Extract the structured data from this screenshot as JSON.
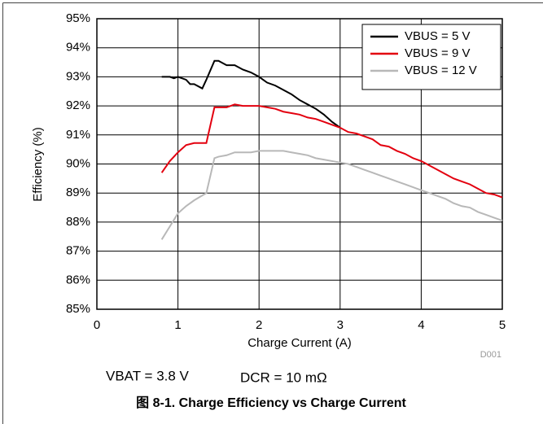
{
  "chart_data": {
    "type": "line",
    "title": "图 8-1. Charge Efficiency vs Charge Current",
    "xlabel": "Charge Current (A)",
    "ylabel": "Efficiency (%)",
    "annotations": [
      "D001",
      "VBAT = 3.8 V",
      "DCR = 10 mΩ"
    ],
    "xlim": [
      0,
      5
    ],
    "xticks": [
      0,
      1,
      2,
      3,
      4,
      5
    ],
    "ylim": [
      85,
      95
    ],
    "yticks": [
      {
        "value": 85,
        "label": "85%"
      },
      {
        "value": 86,
        "label": "86%"
      },
      {
        "value": 87,
        "label": "87%"
      },
      {
        "value": 88,
        "label": "88%"
      },
      {
        "value": 89,
        "label": "89%"
      },
      {
        "value": 90,
        "label": "90%"
      },
      {
        "value": 91,
        "label": "91%"
      },
      {
        "value": 92,
        "label": "92%"
      },
      {
        "value": 93,
        "label": "93%"
      },
      {
        "value": 94,
        "label": "94%"
      },
      {
        "value": 95,
        "label": "95%"
      }
    ],
    "grid": true,
    "legend": "upper right",
    "series": [
      {
        "name": "VBUS = 5 V",
        "color": "#000000",
        "x": [
          0.8,
          0.9,
          0.95,
          1.0,
          1.1,
          1.15,
          1.2,
          1.3,
          1.35,
          1.45,
          1.5,
          1.6,
          1.7,
          1.8,
          1.9,
          2.0,
          2.1,
          2.2,
          2.3,
          2.4,
          2.5,
          2.6,
          2.7,
          2.8,
          2.9,
          3.0
        ],
        "values": [
          93.0,
          93.0,
          92.95,
          93.0,
          92.9,
          92.75,
          92.75,
          92.6,
          92.9,
          93.55,
          93.55,
          93.4,
          93.4,
          93.25,
          93.15,
          93.0,
          92.8,
          92.7,
          92.55,
          92.4,
          92.2,
          92.05,
          91.9,
          91.7,
          91.45,
          91.25
        ]
      },
      {
        "name": "VBUS = 9 V",
        "color": "#e3000f",
        "x": [
          0.8,
          0.9,
          1.0,
          1.1,
          1.2,
          1.35,
          1.45,
          1.5,
          1.6,
          1.7,
          1.8,
          2.0,
          2.1,
          2.2,
          2.3,
          2.4,
          2.5,
          2.6,
          2.7,
          2.8,
          2.9,
          3.0,
          3.1,
          3.2,
          3.3,
          3.4,
          3.5,
          3.6,
          3.7,
          3.8,
          3.9,
          4.0,
          4.1,
          4.2,
          4.3,
          4.4,
          4.5,
          4.6,
          4.7,
          4.8,
          4.9,
          5.0
        ],
        "values": [
          89.7,
          90.1,
          90.4,
          90.65,
          90.72,
          90.72,
          91.95,
          91.95,
          91.95,
          92.05,
          92.0,
          92.0,
          91.95,
          91.9,
          91.8,
          91.75,
          91.7,
          91.6,
          91.55,
          91.45,
          91.35,
          91.25,
          91.1,
          91.05,
          90.95,
          90.85,
          90.65,
          90.6,
          90.45,
          90.35,
          90.2,
          90.1,
          89.95,
          89.8,
          89.65,
          89.5,
          89.4,
          89.3,
          89.15,
          89.0,
          88.95,
          88.85
        ]
      },
      {
        "name": "VBUS = 12 V",
        "color": "#b8b8b8",
        "x": [
          0.8,
          0.9,
          1.0,
          1.1,
          1.2,
          1.35,
          1.45,
          1.5,
          1.6,
          1.7,
          1.8,
          1.9,
          2.0,
          2.2,
          2.3,
          2.4,
          2.5,
          2.6,
          2.7,
          2.8,
          2.9,
          3.0,
          3.1,
          3.2,
          3.3,
          3.4,
          3.5,
          3.6,
          3.7,
          3.8,
          3.9,
          4.0,
          4.1,
          4.2,
          4.3,
          4.4,
          4.5,
          4.6,
          4.7,
          4.8,
          4.9,
          5.0
        ],
        "values": [
          87.4,
          87.85,
          88.3,
          88.55,
          88.75,
          89.0,
          90.2,
          90.25,
          90.3,
          90.4,
          90.4,
          90.4,
          90.45,
          90.45,
          90.45,
          90.4,
          90.35,
          90.3,
          90.2,
          90.15,
          90.1,
          90.05,
          90.0,
          89.9,
          89.8,
          89.7,
          89.6,
          89.5,
          89.4,
          89.3,
          89.2,
          89.1,
          89.0,
          88.9,
          88.8,
          88.65,
          88.55,
          88.5,
          88.35,
          88.25,
          88.15,
          88.05
        ]
      }
    ]
  }
}
